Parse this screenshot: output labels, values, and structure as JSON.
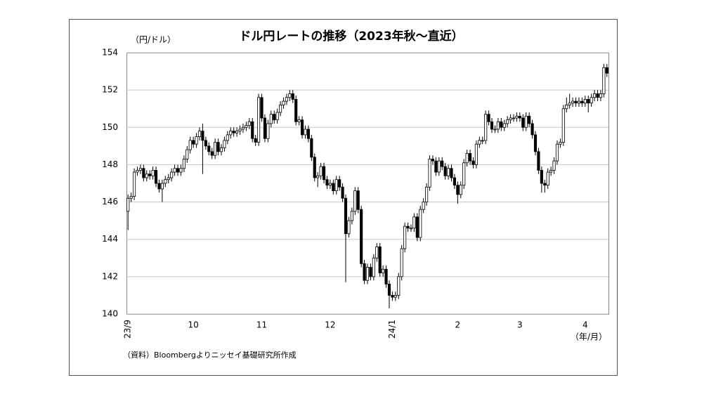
{
  "chart_data": {
    "type": "candlestick",
    "title": "ドル円レートの推移（2023年秋～直近）",
    "y_label": "（円/ドル）",
    "x_label": "（年/月）",
    "source": "（資料）Bloombergよりニッセイ基礎研究所作成",
    "up_color": "#ffffff",
    "down_color": "#000000",
    "ylim": [
      140,
      154
    ],
    "yticks": [
      140,
      142,
      144,
      146,
      148,
      150,
      152,
      154
    ],
    "grid": true,
    "categories": [
      "23/9",
      null,
      null,
      null,
      null,
      null,
      null,
      null,
      null,
      null,
      null,
      null,
      null,
      null,
      null,
      null,
      null,
      null,
      null,
      null,
      null,
      "10",
      null,
      null,
      null,
      null,
      null,
      null,
      null,
      null,
      null,
      null,
      null,
      null,
      null,
      null,
      null,
      null,
      null,
      null,
      null,
      null,
      null,
      "11",
      null,
      null,
      null,
      null,
      null,
      null,
      null,
      null,
      null,
      null,
      null,
      null,
      null,
      null,
      null,
      null,
      null,
      null,
      null,
      null,
      null,
      "12",
      null,
      null,
      null,
      null,
      null,
      null,
      null,
      null,
      null,
      null,
      null,
      null,
      null,
      null,
      null,
      null,
      null,
      null,
      null,
      "24/1",
      null,
      null,
      null,
      null,
      null,
      null,
      null,
      null,
      null,
      null,
      null,
      null,
      null,
      null,
      null,
      null,
      null,
      null,
      null,
      null,
      "2",
      null,
      null,
      null,
      null,
      null,
      null,
      null,
      null,
      null,
      null,
      null,
      null,
      null,
      null,
      null,
      null,
      null,
      null,
      null,
      "3",
      null,
      null,
      null,
      null,
      null,
      null,
      null,
      null,
      null,
      null,
      null,
      null,
      null,
      null,
      null,
      null,
      null,
      null,
      null,
      null,
      "4",
      null,
      null,
      null,
      null,
      null,
      null,
      null
    ],
    "open": [
      145.5,
      146.2,
      146.3,
      147.6,
      147.7,
      147.8,
      147.3,
      147.5,
      147.4,
      147.7,
      147.0,
      146.7,
      147.0,
      147.2,
      147.3,
      147.6,
      147.8,
      147.6,
      147.8,
      148.3,
      148.8,
      149.3,
      149.1,
      149.5,
      149.8,
      149.3,
      149.0,
      148.7,
      148.5,
      149.2,
      148.7,
      148.9,
      149.3,
      149.6,
      149.8,
      149.7,
      149.8,
      149.9,
      150.0,
      150.1,
      150.3,
      149.4,
      149.2,
      151.6,
      150.5,
      149.4,
      150.2,
      150.7,
      150.4,
      150.8,
      151.2,
      151.4,
      151.6,
      151.8,
      151.5,
      150.3,
      150.4,
      149.6,
      149.9,
      149.4,
      148.4,
      147.3,
      147.4,
      147.9,
      147.2,
      146.9,
      147.0,
      146.6,
      147.2,
      146.8,
      146.2,
      144.3,
      145.0,
      145.5,
      146.6,
      145.6,
      142.7,
      141.8,
      142.5,
      142.0,
      143.0,
      143.6,
      142.2,
      142.4,
      141.6,
      141.0,
      140.9,
      141.0,
      142.0,
      143.5,
      144.7,
      144.6,
      144.6,
      145.2,
      144.1,
      145.6,
      146.0,
      146.8,
      148.3,
      148.2,
      147.6,
      148.2,
      147.9,
      147.4,
      147.8,
      147.3,
      146.9,
      146.4,
      146.9,
      148.1,
      148.6,
      148.2,
      148.0,
      149.1,
      149.3,
      149.3,
      150.7,
      150.3,
      149.9,
      149.9,
      150.3,
      150.0,
      150.2,
      150.4,
      150.5,
      150.5,
      150.6,
      150.5,
      150.0,
      150.6,
      150.2,
      149.6,
      148.7,
      147.7,
      147.0,
      146.9,
      147.6,
      147.7,
      148.2,
      149.1,
      149.2,
      151.0,
      151.2,
      151.3,
      151.4,
      151.3,
      151.4,
      151.3,
      151.5,
      151.3,
      151.6,
      151.8,
      151.6,
      151.8,
      153.2
    ],
    "high": [
      146.4,
      146.5,
      147.8,
      147.9,
      148.0,
      148.0,
      147.7,
      147.7,
      147.9,
      147.9,
      147.2,
      147.2,
      147.4,
      147.5,
      147.8,
      148.0,
      148.0,
      148.0,
      148.5,
      149.0,
      149.5,
      149.5,
      149.7,
      150.0,
      150.2,
      149.5,
      149.2,
      148.9,
      149.4,
      149.4,
      149.1,
      149.5,
      149.8,
      150.0,
      150.0,
      150.0,
      150.1,
      150.2,
      150.3,
      150.5,
      150.5,
      149.6,
      151.8,
      151.8,
      150.7,
      150.4,
      150.9,
      150.9,
      151.0,
      151.4,
      151.6,
      151.8,
      152.0,
      152.0,
      151.7,
      150.6,
      150.6,
      150.1,
      150.1,
      149.6,
      148.6,
      147.6,
      148.1,
      148.1,
      147.4,
      147.2,
      147.2,
      147.4,
      147.4,
      147.0,
      146.4,
      145.2,
      145.7,
      146.8,
      146.8,
      145.8,
      142.9,
      142.7,
      142.7,
      143.2,
      143.8,
      143.8,
      142.6,
      142.6,
      141.8,
      141.2,
      141.2,
      142.2,
      143.7,
      144.9,
      144.9,
      144.8,
      145.4,
      145.4,
      145.8,
      146.2,
      147.0,
      148.5,
      148.5,
      148.4,
      148.4,
      148.4,
      148.1,
      148.0,
      148.0,
      147.5,
      147.1,
      147.1,
      148.3,
      148.8,
      148.8,
      148.4,
      149.3,
      149.5,
      149.5,
      150.9,
      150.9,
      150.5,
      150.1,
      150.5,
      150.5,
      150.4,
      150.6,
      150.7,
      150.7,
      150.8,
      150.8,
      150.7,
      150.8,
      150.8,
      150.4,
      149.8,
      148.9,
      147.9,
      147.2,
      147.8,
      147.9,
      148.4,
      149.3,
      149.4,
      151.2,
      151.6,
      151.8,
      151.6,
      151.6,
      151.6,
      151.6,
      151.7,
      151.7,
      151.8,
      152.0,
      152.0,
      152.0,
      153.4,
      153.4
    ],
    "low": [
      144.5,
      146.0,
      146.1,
      147.4,
      147.5,
      147.1,
      147.1,
      147.2,
      147.2,
      146.8,
      146.5,
      146.0,
      146.8,
      147.0,
      147.1,
      147.4,
      147.4,
      147.4,
      147.6,
      148.1,
      148.6,
      148.9,
      148.9,
      149.3,
      147.5,
      148.8,
      148.5,
      148.3,
      148.3,
      148.5,
      148.5,
      148.7,
      149.1,
      149.4,
      149.5,
      149.5,
      149.6,
      149.7,
      149.8,
      149.9,
      149.2,
      149.0,
      149.0,
      150.3,
      149.2,
      149.2,
      150.0,
      150.2,
      150.2,
      150.6,
      151.0,
      151.2,
      151.4,
      151.3,
      150.1,
      150.1,
      149.4,
      149.4,
      149.2,
      148.2,
      147.1,
      146.8,
      147.2,
      147.0,
      146.7,
      146.7,
      146.4,
      146.4,
      146.6,
      146.0,
      141.7,
      144.1,
      144.8,
      145.3,
      145.4,
      142.5,
      141.6,
      141.6,
      141.8,
      141.8,
      142.8,
      142.0,
      142.0,
      141.4,
      140.3,
      140.7,
      140.7,
      140.8,
      141.8,
      143.3,
      144.4,
      144.4,
      144.4,
      143.9,
      143.9,
      145.4,
      145.8,
      146.6,
      148.0,
      147.4,
      147.4,
      147.7,
      147.2,
      147.2,
      147.1,
      146.7,
      145.9,
      146.2,
      146.7,
      147.9,
      148.0,
      147.8,
      147.8,
      148.9,
      149.1,
      149.1,
      150.1,
      149.7,
      149.7,
      149.7,
      149.8,
      149.8,
      150.0,
      150.2,
      150.3,
      150.3,
      150.3,
      149.8,
      149.8,
      150.0,
      149.4,
      148.5,
      147.5,
      146.5,
      146.5,
      146.7,
      147.4,
      147.5,
      148.0,
      148.9,
      149.0,
      150.8,
      151.0,
      151.1,
      151.1,
      151.1,
      151.1,
      151.1,
      150.8,
      151.1,
      151.4,
      151.4,
      151.4,
      151.6,
      152.7
    ],
    "close": [
      146.2,
      146.3,
      147.6,
      147.7,
      147.8,
      147.3,
      147.5,
      147.4,
      147.7,
      147.0,
      146.7,
      147.0,
      147.2,
      147.3,
      147.6,
      147.8,
      147.6,
      147.8,
      148.3,
      148.8,
      149.3,
      149.1,
      149.5,
      149.8,
      149.3,
      149.0,
      148.7,
      148.5,
      149.2,
      148.7,
      148.9,
      149.3,
      149.6,
      149.8,
      149.7,
      149.8,
      149.9,
      150.0,
      150.1,
      150.3,
      149.4,
      149.2,
      151.6,
      150.5,
      149.4,
      150.2,
      150.7,
      150.4,
      150.8,
      151.2,
      151.4,
      151.6,
      151.8,
      151.5,
      150.3,
      150.4,
      149.6,
      149.9,
      149.4,
      148.4,
      147.3,
      147.4,
      147.9,
      147.2,
      146.9,
      147.0,
      146.6,
      147.2,
      146.8,
      146.2,
      144.3,
      145.0,
      145.5,
      146.6,
      145.6,
      142.7,
      141.8,
      142.5,
      142.0,
      143.0,
      143.6,
      142.2,
      142.4,
      141.6,
      141.0,
      140.9,
      141.0,
      142.0,
      143.5,
      144.7,
      144.6,
      144.6,
      145.2,
      144.1,
      145.6,
      146.0,
      146.8,
      148.3,
      148.2,
      147.6,
      148.2,
      147.9,
      147.4,
      147.8,
      147.3,
      146.9,
      146.4,
      146.9,
      148.1,
      148.6,
      148.2,
      148.0,
      149.1,
      149.3,
      149.3,
      150.7,
      150.3,
      149.9,
      149.9,
      150.3,
      150.0,
      150.2,
      150.4,
      150.5,
      150.5,
      150.6,
      150.5,
      150.0,
      150.6,
      150.2,
      149.6,
      148.7,
      147.7,
      147.0,
      146.9,
      147.6,
      147.7,
      148.2,
      149.1,
      149.2,
      151.0,
      151.2,
      151.3,
      151.4,
      151.3,
      151.4,
      151.3,
      151.5,
      151.3,
      151.6,
      151.8,
      151.6,
      151.8,
      153.2,
      152.9
    ]
  }
}
